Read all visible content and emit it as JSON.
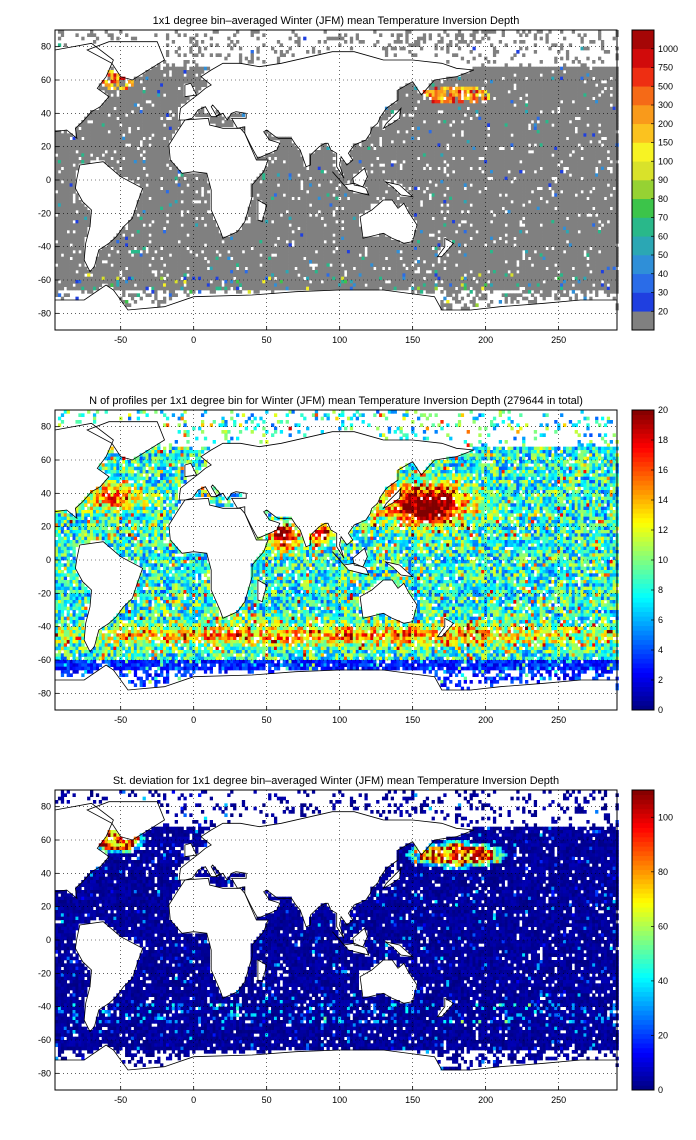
{
  "chart_data": [
    {
      "type": "heatmap",
      "title": "1x1 degree bin–averaged Winter (JFM) mean Temperature Inversion Depth",
      "xlim": [
        -95,
        290
      ],
      "ylim": [
        -90,
        90
      ],
      "xticks": [
        -50,
        0,
        50,
        100,
        150,
        200,
        250
      ],
      "yticks": [
        80,
        60,
        40,
        20,
        0,
        -20,
        -40,
        -60,
        -80
      ],
      "grid": true,
      "colorbar": {
        "scale": "discrete",
        "labels": [
          "20",
          "30",
          "40",
          "50",
          "60",
          "70",
          "80",
          "90",
          "100",
          "150",
          "200",
          "300",
          "500",
          "750",
          "1000"
        ],
        "colors": [
          "#808080",
          "#1f3fe0",
          "#2a6ce8",
          "#2f8fd8",
          "#2ba7b4",
          "#29b88a",
          "#3cc44a",
          "#96d233",
          "#d9e22a",
          "#f7f323",
          "#fbc21f",
          "#f99a1b",
          "#f56a17",
          "#ee2e12",
          "#d10b0b",
          "#a50606"
        ]
      },
      "dominant_value": "20 (gray, most ocean bins)",
      "hotspots": [
        "North Atlantic ~60N/-55E: 200-500",
        "North Pacific ~50N/170-210E: 200-500",
        "Scattered Antarctic margin: 30-150"
      ]
    },
    {
      "type": "heatmap",
      "title": "N of profiles per 1x1 degree bin for Winter (JFM) mean Temperature Inversion Depth  (279644 in total)",
      "xlim": [
        -95,
        290
      ],
      "ylim": [
        -90,
        90
      ],
      "xticks": [
        -50,
        0,
        50,
        100,
        150,
        200,
        250
      ],
      "yticks": [
        80,
        60,
        40,
        20,
        0,
        -20,
        -40,
        -60,
        -80
      ],
      "grid": true,
      "colorbar": {
        "scale": "continuous",
        "min": 0,
        "max": 20,
        "labels": [
          "20",
          "18",
          "16",
          "14",
          "12",
          "10",
          "8",
          "6",
          "4",
          "2",
          "0"
        ]
      },
      "hotspots": [
        "Kuroshio / NW Pacific (20-45N, 130-180E): ~20",
        "Arabian Sea / Bay of Bengal: ~20",
        "Gulf Stream / Mediterranean: ~16-20",
        "Southern Ocean band ~-45: ~12-18",
        "Open ocean typical: 4-12"
      ]
    },
    {
      "type": "heatmap",
      "title": "St. deviation for 1x1 degree bin–averaged Winter (JFM) mean Temperature Inversion Depth",
      "xlim": [
        -95,
        290
      ],
      "ylim": [
        -90,
        90
      ],
      "xticks": [
        -50,
        0,
        50,
        100,
        150,
        200,
        250
      ],
      "yticks": [
        80,
        60,
        40,
        20,
        0,
        -20,
        -40,
        -60,
        -80
      ],
      "grid": true,
      "colorbar": {
        "scale": "continuous",
        "min": 0,
        "max": 110,
        "labels": [
          "100",
          "80",
          "60",
          "40",
          "20",
          "0"
        ]
      },
      "hotspots": [
        "North Atlantic ~60N/-55E: >100",
        "North Pacific ~50N/170-210E: >100",
        "Open ocean typical: 0-10"
      ]
    }
  ],
  "colors": {
    "land": "#ffffff",
    "coast": "#000000",
    "grid": "#000000",
    "ocean_gray": "#808080",
    "deep_blue": "#00008f",
    "jet": [
      "#00008f",
      "#0000ff",
      "#0080ff",
      "#00ffff",
      "#80ff80",
      "#ffff00",
      "#ff8000",
      "#ff0000",
      "#800000"
    ]
  }
}
